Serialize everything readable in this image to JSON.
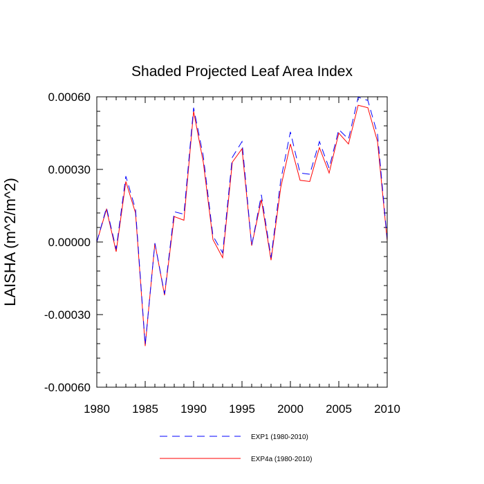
{
  "chart_data": {
    "type": "line",
    "title": "Shaded Projected Leaf Area Index",
    "xlabel": "",
    "ylabel": "LAISHA  (m^2/m^2)",
    "xlim": [
      1980,
      2010
    ],
    "ylim": [
      -0.0006,
      0.0006
    ],
    "x_ticks": [
      1980,
      1985,
      1990,
      1995,
      2000,
      2005,
      2010
    ],
    "x_tick_labels": [
      "1980",
      "1985",
      "1990",
      "1995",
      "2000",
      "2005",
      "2010"
    ],
    "y_ticks": [
      -0.0006,
      -0.0003,
      0.0,
      0.0003,
      0.0006
    ],
    "y_tick_labels": [
      "-0.00060",
      "-0.00030",
      "0.00000",
      "0.00030",
      "0.00060"
    ],
    "grid": false,
    "legend_position": "bottom-center",
    "x": [
      1980,
      1981,
      1982,
      1983,
      1984,
      1985,
      1986,
      1987,
      1988,
      1989,
      1990,
      1991,
      1992,
      1993,
      1994,
      1995,
      1996,
      1997,
      1998,
      1999,
      2000,
      2001,
      2002,
      2003,
      2004,
      2005,
      2006,
      2007,
      2008,
      2009,
      2010
    ],
    "series": [
      {
        "name": "EXP1 (1980-2010)",
        "color": "#0000ff",
        "style": "dashed",
        "values": [
          0.0,
          0.000142,
          -3e-05,
          0.000272,
          0.000135,
          -0.000425,
          -5e-06,
          -0.000215,
          0.000125,
          0.000115,
          0.000555,
          0.000355,
          2.5e-05,
          -4.5e-05,
          0.00035,
          0.000415,
          -1.5e-05,
          0.000195,
          -6.5e-05,
          0.000255,
          0.000455,
          0.000285,
          0.00028,
          0.000415,
          0.000305,
          0.000465,
          0.000425,
          0.000598,
          0.000585,
          0.000445,
          1e-05
        ]
      },
      {
        "name": "EXP4a (1980-2010)",
        "color": "#ff0000",
        "style": "solid",
        "values": [
          0.0,
          0.000135,
          -4e-05,
          0.00025,
          0.00012,
          -0.00043,
          -5e-06,
          -0.00022,
          0.000105,
          9e-05,
          0.00054,
          0.00033,
          1e-05,
          -6.5e-05,
          0.00033,
          0.000385,
          -1.5e-05,
          0.000175,
          -7.5e-05,
          0.000225,
          0.000405,
          0.000255,
          0.00025,
          0.00039,
          0.000285,
          0.00045,
          0.000405,
          0.000565,
          0.000555,
          0.000415,
          5e-06
        ]
      }
    ]
  }
}
